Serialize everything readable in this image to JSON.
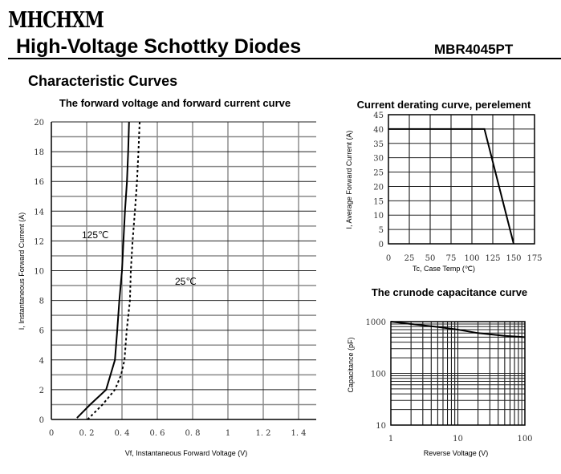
{
  "header": {
    "logo": "MHCHXM",
    "title": "High-Voltage Schottky Diodes",
    "part_number": "MBR4045PT"
  },
  "section_title": "Characteristic Curves",
  "chart_data": [
    {
      "type": "line",
      "title": "The forward voltage and forward current curve",
      "xlabel": "Vf, Instantaneous Forward Voltage (V)",
      "ylabel": "I, Instantaneous Forward Current (A)",
      "xlim": [
        0,
        1.5
      ],
      "ylim": [
        0,
        20
      ],
      "xticks": [
        0,
        0.2,
        0.4,
        0.6,
        0.8,
        1,
        1.2,
        1.4
      ],
      "xtick_labels": [
        "0",
        "0. 2",
        "0. 4",
        "0. 6",
        "0. 8",
        "1",
        "1. 2",
        "1. 4"
      ],
      "yticks": [
        0,
        2,
        4,
        6,
        8,
        10,
        12,
        14,
        16,
        18,
        20
      ],
      "grid": true,
      "series": [
        {
          "name": "125℃",
          "style": "solid",
          "x": [
            0.145,
            0.22,
            0.31,
            0.36,
            0.373,
            0.385,
            0.4,
            0.408,
            0.417,
            0.428,
            0.435,
            0.44
          ],
          "y": [
            0.1,
            1,
            2,
            4,
            6,
            8,
            10,
            12,
            14,
            16,
            18,
            20
          ]
        },
        {
          "name": "25℃",
          "style": "dotted",
          "x": [
            0.205,
            0.29,
            0.36,
            0.395,
            0.414,
            0.427,
            0.445,
            0.45,
            0.46,
            0.473,
            0.485,
            0.493,
            0.5
          ],
          "y": [
            0,
            1,
            2,
            3,
            4,
            6,
            8,
            10,
            12,
            14,
            16,
            18,
            20
          ]
        }
      ],
      "annotations": [
        "125℃",
        "25℃"
      ]
    },
    {
      "type": "line",
      "title": "Current derating curve, perelement",
      "xlabel": "Tc, Case Temp (℃)",
      "ylabel": "I, Average Forward Current (A)",
      "xlim": [
        0,
        175
      ],
      "ylim": [
        0,
        45
      ],
      "xticks": [
        0,
        25,
        50,
        75,
        100,
        125,
        150,
        175
      ],
      "yticks": [
        0,
        5,
        10,
        15,
        20,
        25,
        30,
        35,
        40,
        45
      ],
      "grid": true,
      "series": [
        {
          "x": [
            0,
            115,
            150
          ],
          "y": [
            40,
            40,
            0
          ]
        }
      ]
    },
    {
      "type": "line",
      "title": "The crunode capacitance curve",
      "xlabel": "Reverse Voltage (V)",
      "ylabel": "Capacitance (pF)",
      "xscale": "log",
      "yscale": "log",
      "xlim": [
        1,
        100
      ],
      "ylim": [
        10,
        1000
      ],
      "xticks": [
        1,
        10,
        100
      ],
      "yticks": [
        10,
        100,
        1000
      ],
      "grid": true,
      "series": [
        {
          "x": [
            1,
            2,
            3,
            5,
            10,
            20,
            50,
            100
          ],
          "y": [
            1000,
            900,
            850,
            790,
            700,
            600,
            530,
            500
          ]
        }
      ]
    }
  ]
}
